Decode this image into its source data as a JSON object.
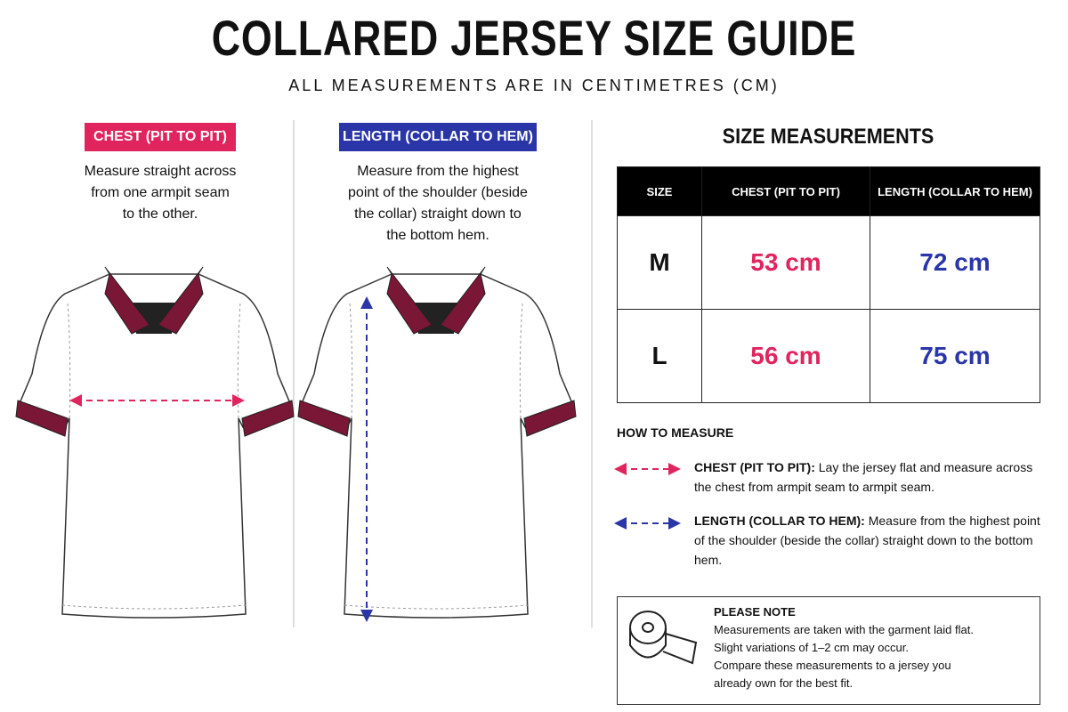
{
  "header": {
    "title": "COLLARED JERSEY SIZE GUIDE",
    "subtitle": "ALL MEASUREMENTS ARE IN CENTIMETRES (CM)"
  },
  "chest_panel": {
    "label": "CHEST (PIT TO PIT)",
    "lines": [
      "Measure straight across",
      "from one armpit seam",
      "to the other."
    ]
  },
  "length_panel": {
    "label": "LENGTH (COLLAR TO HEM)",
    "lines": [
      "Measure from the highest",
      "point of the shoulder (beside",
      "the collar) straight down to",
      "the bottom hem."
    ]
  },
  "table": {
    "title": "SIZE MEASUREMENTS",
    "columns": [
      "SIZE",
      "CHEST (PIT TO PIT)",
      "LENGTH (COLLAR TO HEM)"
    ],
    "rows": [
      [
        "M",
        "53 cm",
        "72 cm"
      ],
      [
        "L",
        "56 cm",
        "75 cm"
      ]
    ]
  },
  "how_to_measure": {
    "title": "HOW TO MEASURE",
    "items": [
      {
        "term": "CHEST (PIT TO PIT):",
        "text": "Lay the jersey flat and measure across the chest from armpit seam to armpit seam."
      },
      {
        "term": "LENGTH (COLLAR TO HEM):",
        "text": "Measure from the highest point of the shoulder (beside the collar) straight down to the bottom hem."
      }
    ]
  },
  "note": {
    "title": "PLEASE NOTE",
    "lines": [
      "Measurements are taken with the garment laid flat.",
      "Slight variations of 1–2 cm may occur.",
      "Compare these measurements to a jersey you",
      "already own for the best fit."
    ]
  }
}
